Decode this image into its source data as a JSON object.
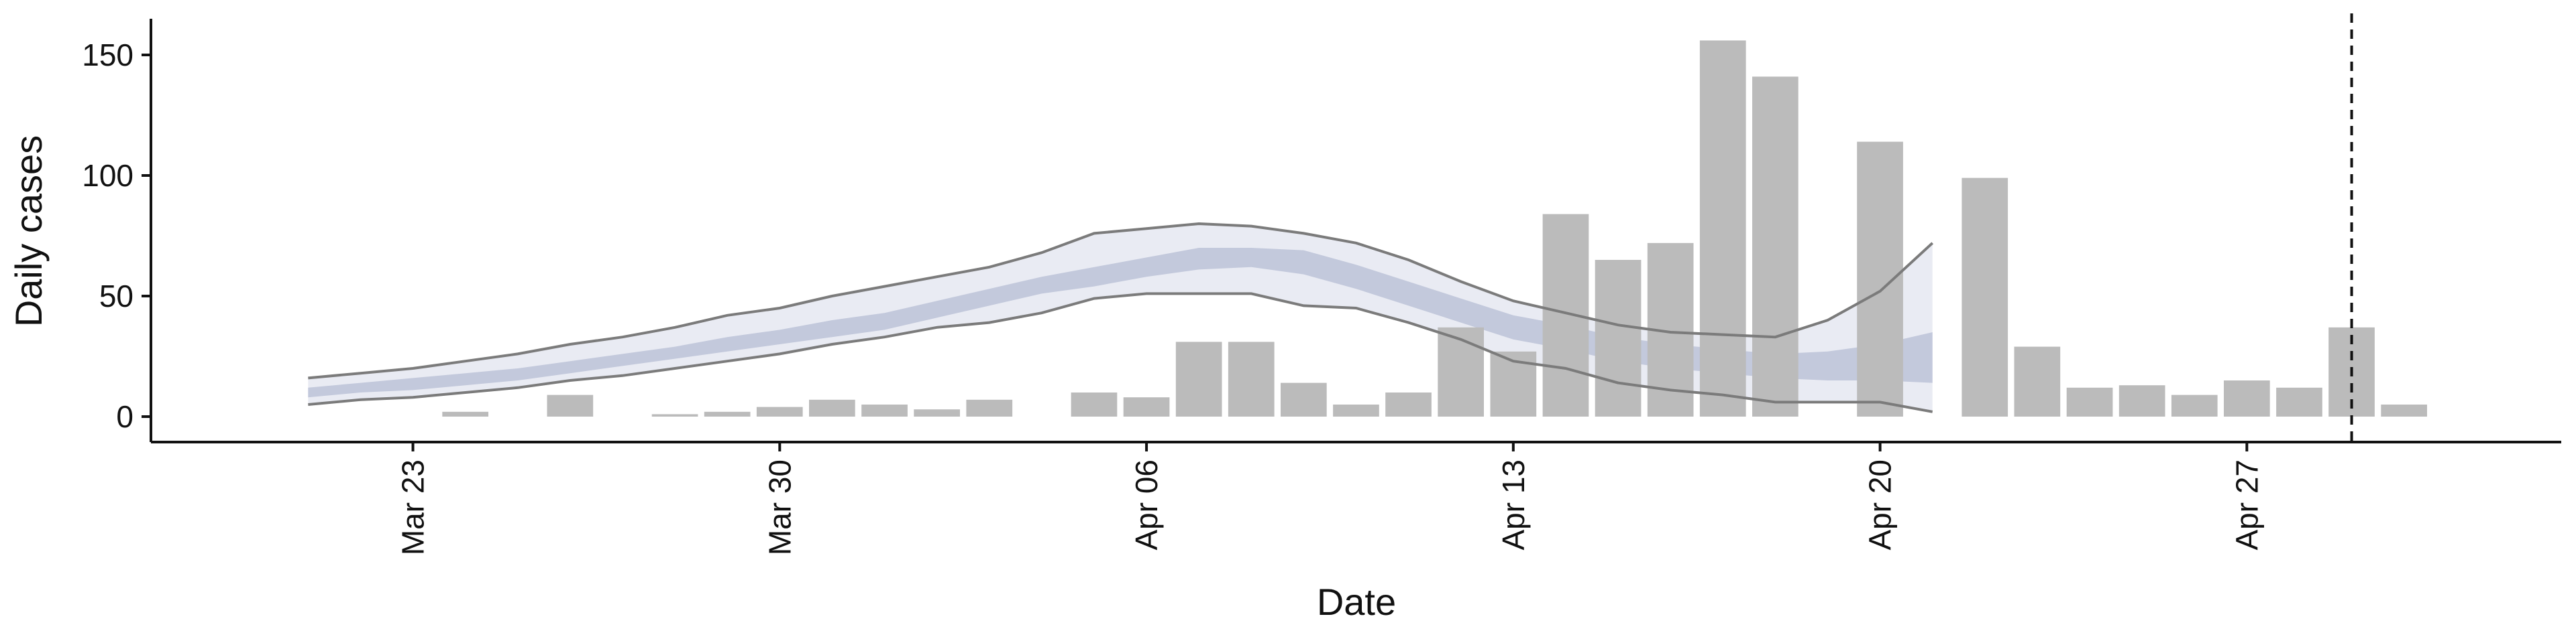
{
  "chart_data": {
    "type": "bar",
    "xlabel": "Date",
    "ylabel": "Daily cases",
    "ylim": [
      -10,
      165
    ],
    "y_ticks": [
      0,
      50,
      100,
      150
    ],
    "x_ticks": [
      {
        "day": "2020-03-23",
        "label": "Mar 23"
      },
      {
        "day": "2020-03-30",
        "label": "Mar 30"
      },
      {
        "day": "2020-04-06",
        "label": "Apr 06"
      },
      {
        "day": "2020-04-13",
        "label": "Apr 13"
      },
      {
        "day": "2020-04-20",
        "label": "Apr 20"
      },
      {
        "day": "2020-04-27",
        "label": "Apr 27"
      }
    ],
    "xlim": [
      "2020-03-18",
      "2020-05-03"
    ],
    "vline": "2020-04-29",
    "bars": {
      "dates": [
        "2020-03-24",
        "2020-03-26",
        "2020-03-28",
        "2020-03-29",
        "2020-03-30",
        "2020-03-31",
        "2020-04-01",
        "2020-04-02",
        "2020-04-03",
        "2020-04-05",
        "2020-04-06",
        "2020-04-07",
        "2020-04-08",
        "2020-04-09",
        "2020-04-10",
        "2020-04-11",
        "2020-04-12",
        "2020-04-13",
        "2020-04-14",
        "2020-04-15",
        "2020-04-16",
        "2020-04-17",
        "2020-04-18",
        "2020-04-20",
        "2020-04-22",
        "2020-04-23",
        "2020-04-24",
        "2020-04-25",
        "2020-04-26",
        "2020-04-27",
        "2020-04-28",
        "2020-04-29",
        "2020-04-30"
      ],
      "values": [
        2,
        9,
        1,
        2,
        4,
        7,
        5,
        3,
        7,
        10,
        8,
        31,
        31,
        14,
        5,
        10,
        37,
        27,
        84,
        65,
        72,
        156,
        141,
        114,
        99,
        29,
        12,
        13,
        9,
        15,
        12,
        37,
        5
      ]
    },
    "estimate": {
      "dates": [
        "2020-03-21",
        "2020-03-22",
        "2020-03-23",
        "2020-03-24",
        "2020-03-25",
        "2020-03-26",
        "2020-03-27",
        "2020-03-28",
        "2020-03-29",
        "2020-03-30",
        "2020-03-31",
        "2020-04-01",
        "2020-04-02",
        "2020-04-03",
        "2020-04-04",
        "2020-04-05",
        "2020-04-06",
        "2020-04-07",
        "2020-04-08",
        "2020-04-09",
        "2020-04-10",
        "2020-04-11",
        "2020-04-12",
        "2020-04-13",
        "2020-04-14",
        "2020-04-15",
        "2020-04-16",
        "2020-04-17",
        "2020-04-18",
        "2020-04-19",
        "2020-04-20",
        "2020-04-21"
      ],
      "outer_upper": [
        16,
        18,
        20,
        23,
        26,
        30,
        33,
        37,
        42,
        45,
        50,
        54,
        58,
        62,
        68,
        76,
        78,
        80,
        79,
        76,
        72,
        65,
        56,
        48,
        43,
        38,
        35,
        34,
        33,
        40,
        52,
        72
      ],
      "outer_lower": [
        5,
        7,
        8,
        10,
        12,
        15,
        17,
        20,
        23,
        26,
        30,
        33,
        37,
        39,
        43,
        49,
        51,
        51,
        51,
        46,
        45,
        39,
        32,
        23,
        20,
        14,
        11,
        9,
        6,
        6,
        6,
        2
      ],
      "inner_upper": [
        12,
        14,
        16,
        18,
        20,
        23,
        26,
        29,
        33,
        36,
        40,
        43,
        48,
        53,
        58,
        62,
        66,
        70,
        70,
        69,
        63,
        56,
        49,
        42,
        38,
        33,
        30,
        28,
        26,
        27,
        30,
        35
      ],
      "inner_lower": [
        8,
        10,
        11,
        13,
        15,
        18,
        21,
        24,
        27,
        30,
        33,
        36,
        41,
        46,
        51,
        54,
        58,
        61,
        62,
        59,
        53,
        46,
        39,
        32,
        28,
        23,
        20,
        18,
        16,
        15,
        15,
        14
      ]
    },
    "colors": {
      "bar": "#bbbbbb",
      "outer_band": "#e9ebf3",
      "inner_band": "#c3c9dc",
      "band_line": "#7b7b7b",
      "vline": "#111111",
      "axis": "#111111"
    }
  }
}
